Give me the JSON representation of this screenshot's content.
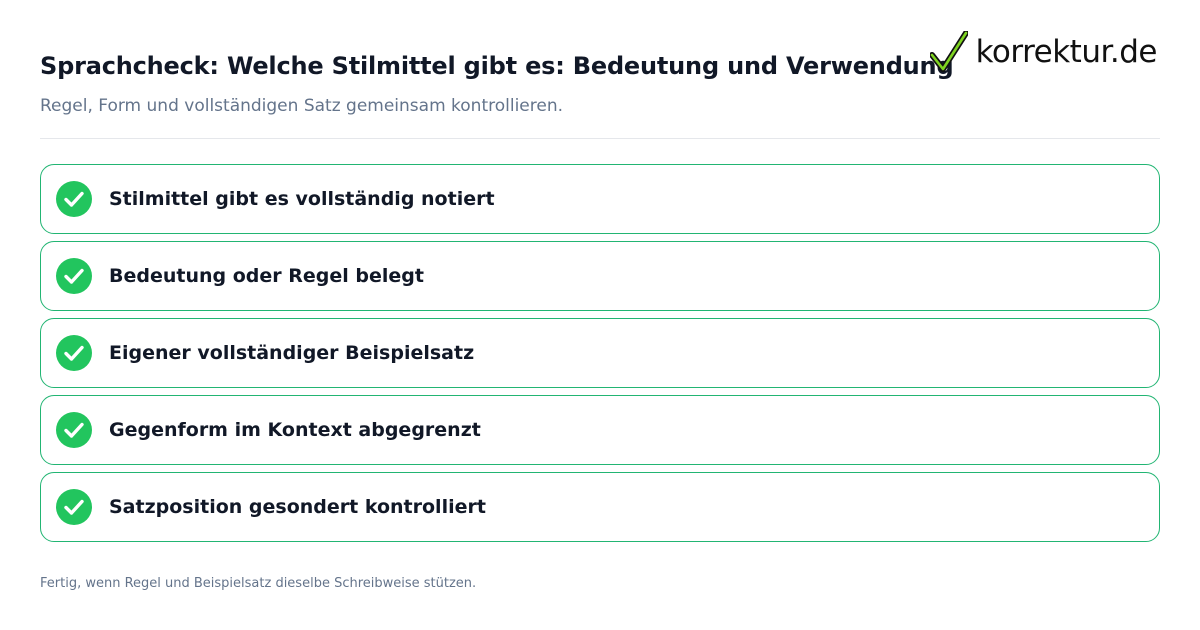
{
  "header": {
    "title": "Sprachcheck: Welche Stilmittel gibt es: Bedeutung und Verwendung",
    "subtitle": "Regel, Form und vollständigen Satz gemeinsam kontrollieren."
  },
  "logo": {
    "text": "korrektur.de",
    "icon": "checkmark-logo-icon"
  },
  "checklist": {
    "items": [
      {
        "label": "Stilmittel gibt es vollständig notiert",
        "checked": true
      },
      {
        "label": "Bedeutung oder Regel belegt",
        "checked": true
      },
      {
        "label": "Eigener vollständiger Beispielsatz",
        "checked": true
      },
      {
        "label": "Gegenform im Kontext abgegrenzt",
        "checked": true
      },
      {
        "label": "Satzposition gesondert kontrolliert",
        "checked": true
      }
    ]
  },
  "footer": {
    "note": "Fertig, wenn Regel und Beispielsatz dieselbe Schreibweise stützen."
  },
  "colors": {
    "accent": "#22c55e",
    "border": "#22b573",
    "title": "#111827",
    "muted": "#64748b"
  }
}
